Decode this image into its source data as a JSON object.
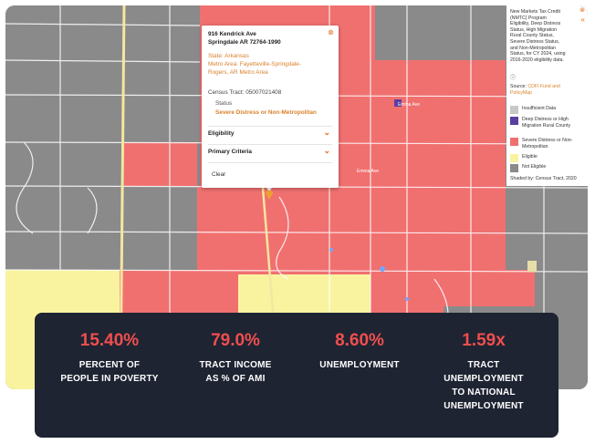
{
  "popup": {
    "address_line1": "916 Kendrick Ave",
    "address_line2": "Springdale AR 72764-1990",
    "state": "State: Arkansas",
    "metro_line1": "Metro Area: Fayetteville-Springdale-",
    "metro_line2": "Rogers, AR Metro Area",
    "census_tract": "Census Tract: 05007021408",
    "status_label": "Status",
    "status_value": "Severe Distress or Non-Metropolitan",
    "eligibility_label": "Eligibility",
    "primary_criteria_label": "Primary Criteria",
    "clear_label": "Clear"
  },
  "legend": {
    "title_lines": [
      "New Markets Tax Credit",
      "(NMTC) Program",
      "Eligibility, Deep Distress",
      "Status, High Migration",
      "Rural County Status,",
      "Severe Distress Status,",
      "and Non-Metropolitan",
      "Status, for CY 2024, using",
      "2016-2020 eligibility data."
    ],
    "info_icon": "info-icon",
    "source_prefix": "Source: ",
    "source_link": "CDFI Fund and PolicyMap",
    "items": [
      {
        "label": "Insufficient Data",
        "color": "#c8c8c8"
      },
      {
        "label": "Deep Distress or High Migration Rural County",
        "color": "#5b3fa0"
      },
      {
        "label": "Severe Distress or Non-Metropolitan",
        "color": "#f07070"
      },
      {
        "label": "Eligible",
        "color": "#f9f3a0"
      },
      {
        "label": "Not Eligible",
        "color": "#8a8a8a"
      }
    ],
    "shaded_by": "Shaded by: Census Tract, 2020"
  },
  "stats": [
    {
      "value": "15.40%",
      "label_lines": [
        "PERCENT OF",
        "PEOPLE IN POVERTY"
      ]
    },
    {
      "value": "79.0%",
      "label_lines": [
        "TRACT INCOME",
        "AS % OF AMI"
      ]
    },
    {
      "value": "8.60%",
      "label_lines": [
        "UNEMPLOYMENT"
      ]
    },
    {
      "value": "1.59x",
      "label_lines": [
        "TRACT",
        "UNEMPLOYMENT",
        "TO NATIONAL",
        "UNEMPLOYMENT"
      ]
    }
  ],
  "map_labels": {
    "street_1": "Emma Ave",
    "street_2": "Emma Ave"
  },
  "colors": {
    "severe": "#f07070",
    "eligible": "#f9f3a0",
    "not_eligible": "#8a8a8a",
    "deep": "#5b3fa0",
    "accent": "#e8711c",
    "stats_bg": "#1e2432",
    "stat_value": "#f04e4e"
  }
}
